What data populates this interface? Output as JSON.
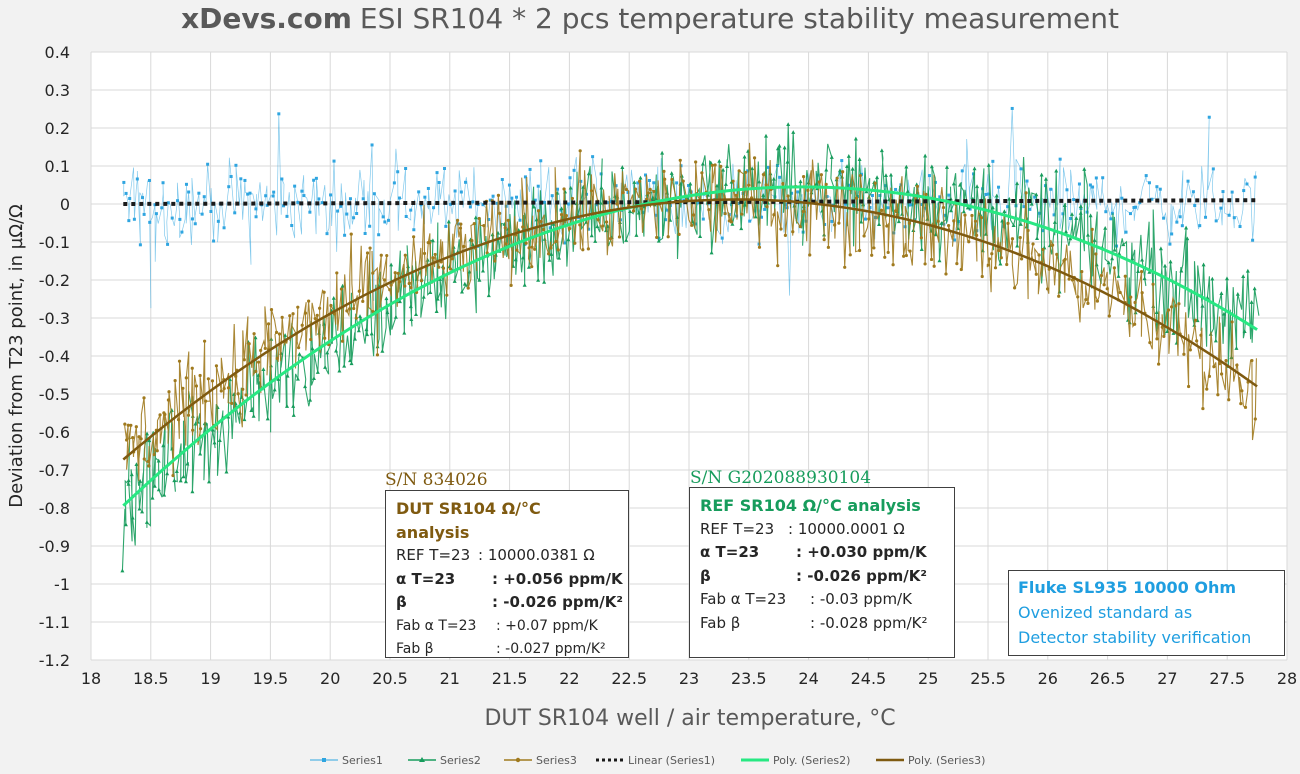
{
  "colors": {
    "series1": "#2fa5e0",
    "series2": "#179c5c",
    "series3": "#a07a1e",
    "linear1": "#1a1a1a",
    "poly2": "#27e882",
    "poly3": "#7f5a10",
    "dut_text": "#7f5a10",
    "ref_text": "#179c5c",
    "fluke_text": "#1f9ee0"
  },
  "chart_data": {
    "type": "scatter",
    "title_brand": "xDevs.com",
    "title_rest": "ESI SR104 * 2 pcs temperature stability measurement",
    "xlabel": "DUT SR104 well / air temperature, °C",
    "ylabel": "Deviation from T23 point, in µΩ/Ω",
    "xlim": [
      18,
      28
    ],
    "ylim": [
      -1.2,
      0.4
    ],
    "x_ticks": [
      "18",
      "18.5",
      "19",
      "19.5",
      "20",
      "20.5",
      "21",
      "21.5",
      "22",
      "22.5",
      "23",
      "23.5",
      "24",
      "24.5",
      "25",
      "25.5",
      "26",
      "26.5",
      "27",
      "27.5",
      "28"
    ],
    "y_ticks": [
      "0.4",
      "0.3",
      "0.2",
      "0.1",
      "0",
      "-0.1",
      "-0.2",
      "-0.3",
      "-0.4",
      "-0.5",
      "-0.6",
      "-0.7",
      "-0.8",
      "-0.9",
      "-1",
      "-1.1",
      "-1.2"
    ],
    "grid": true,
    "legend_position": "bottom",
    "data_range_x": [
      18.27,
      27.75
    ],
    "series": [
      {
        "name": "Series1",
        "marker": "square",
        "model": {
          "type": "constant",
          "value": 0.0,
          "noise": 0.085
        }
      },
      {
        "name": "Series2",
        "marker": "triangle",
        "model": {
          "type": "poly2",
          "vertex_x": 23.95,
          "vertex_y": 0.045,
          "a": -0.026,
          "noise": 0.12
        }
      },
      {
        "name": "Series3",
        "marker": "circle",
        "model": {
          "type": "poly2",
          "vertex_x": 23.4,
          "vertex_y": 0.012,
          "a": -0.026,
          "noise": 0.11
        }
      }
    ],
    "trendlines": [
      {
        "name": "Linear (Series1)",
        "type": "linear",
        "points": [
          [
            18.27,
            0.0
          ],
          [
            27.75,
            0.01
          ]
        ]
      },
      {
        "name": "Poly. (Series2)",
        "type": "poly2",
        "vertex_x": 23.95,
        "vertex_y": 0.045,
        "a": -0.026,
        "x_range": [
          18.27,
          27.75
        ]
      },
      {
        "name": "Poly. (Series3)",
        "type": "poly2",
        "vertex_x": 23.4,
        "vertex_y": 0.012,
        "a": -0.026,
        "x_range": [
          18.27,
          27.75
        ]
      }
    ],
    "legend": [
      "Series1",
      "Series2",
      "Series3",
      "Linear (Series1)",
      "Poly. (Series2)",
      "Poly. (Series3)"
    ]
  },
  "annotations": {
    "dut_sn": "S/N 834026",
    "ref_sn": "S/N G202088930104",
    "dut_box": {
      "title": "DUT SR104 Ω/°C analysis",
      "r1_label": "REF T=23",
      "r1_value": ": 10000.0381 Ω",
      "r2_label": "α T=23",
      "r2_value": ": +0.056 ppm/K",
      "r3_label": "β",
      "r3_value": ": -0.026 ppm/K²",
      "r4_label": "Fab α T=23",
      "r4_value": ": +0.07 ppm/K",
      "r5_label": "Fab β",
      "r5_value": ": -0.027 ppm/K²"
    },
    "ref_box": {
      "title": "REF SR104 Ω/°C analysis",
      "r1_label": "REF T=23",
      "r1_value": ": 10000.0001 Ω",
      "r2_label": "α T=23",
      "r2_value": ": +0.030 ppm/K",
      "r3_label": "β",
      "r3_value": ": -0.026 ppm/K²",
      "r4_label": "Fab α T=23",
      "r4_value": ": -0.03 ppm/K",
      "r5_label": "Fab β",
      "r5_value": ": -0.028 ppm/K²"
    },
    "fluke_box": {
      "line1": "Fluke SL935 10000 Ohm",
      "line2": "Ovenized standard as",
      "line3": "Detector stability verification"
    }
  }
}
